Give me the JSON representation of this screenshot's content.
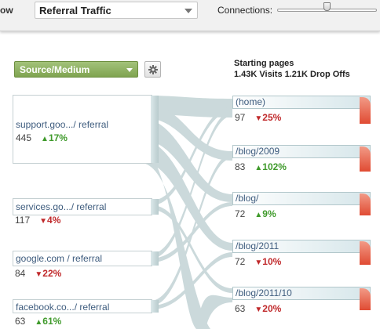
{
  "toolbar": {
    "view_label": "ow",
    "dimension_value": "Referral Traffic",
    "connections_label": "Connections:",
    "connections_level": 0.47
  },
  "controls": {
    "dimension_label": "Source/Medium",
    "gear_icon": "gear-icon"
  },
  "header": {
    "title": "Starting pages",
    "stats": "1.43K Visits 1.21K Drop Offs"
  },
  "colors": {
    "up": "#3f9a2b",
    "down": "#c0292b",
    "flow": "#c2d3d5",
    "dropoff": "#e04b33"
  },
  "sources": [
    {
      "name": "support.goo.../ referral",
      "count": "445",
      "direction": "up",
      "delta": "17%"
    },
    {
      "name": "services.go.../ referral",
      "count": "117",
      "direction": "down",
      "delta": "4%"
    },
    {
      "name": "google.com / referral",
      "count": "84",
      "direction": "down",
      "delta": "22%"
    },
    {
      "name": "facebook.co.../ referral",
      "count": "63",
      "direction": "up",
      "delta": "61%"
    }
  ],
  "pages": [
    {
      "name": "(home)",
      "count": "97",
      "direction": "down",
      "delta": "25%"
    },
    {
      "name": "/blog/2009",
      "count": "83",
      "direction": "up",
      "delta": "102%"
    },
    {
      "name": "/blog/",
      "count": "72",
      "direction": "up",
      "delta": "9%"
    },
    {
      "name": "/blog/2011",
      "count": "72",
      "direction": "down",
      "delta": "10%"
    },
    {
      "name": "/blog/2011/10",
      "count": "63",
      "direction": "down",
      "delta": "20%"
    }
  ]
}
